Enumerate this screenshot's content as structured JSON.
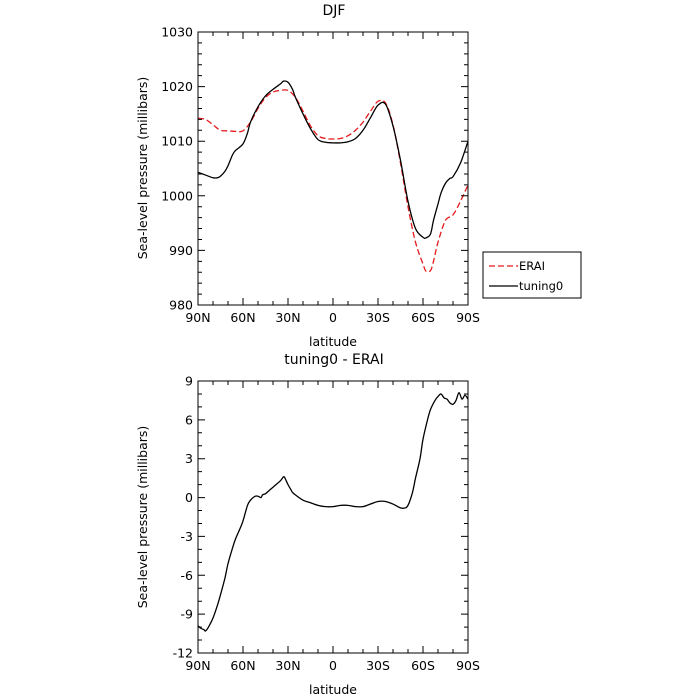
{
  "chart_data": [
    {
      "type": "line",
      "title": "DJF",
      "xlabel": "latitude",
      "ylabel": "Sea-level pressure (millibars)",
      "xlim": [
        90,
        -90
      ],
      "ylim": [
        980,
        1030
      ],
      "xticks": [
        {
          "value": 90,
          "label": "90N"
        },
        {
          "value": 60,
          "label": "60N"
        },
        {
          "value": 30,
          "label": "30N"
        },
        {
          "value": 0,
          "label": "0"
        },
        {
          "value": -30,
          "label": "30S"
        },
        {
          "value": -60,
          "label": "60S"
        },
        {
          "value": -90,
          "label": "90S"
        }
      ],
      "yticks": [
        {
          "value": 1030,
          "label": "1030"
        },
        {
          "value": 1020,
          "label": "1020"
        },
        {
          "value": 1010,
          "label": "1010"
        },
        {
          "value": 1000,
          "label": "1000"
        },
        {
          "value": 990,
          "label": "990"
        },
        {
          "value": 980,
          "label": "980"
        }
      ],
      "legend": "outside-right",
      "grid": false,
      "series": [
        {
          "name": "ERAI",
          "color": "#e41a1c",
          "dash": "dashed",
          "x": [
            90,
            85,
            80,
            75,
            70,
            65,
            60,
            55,
            50,
            45,
            40,
            35,
            30,
            25,
            20,
            15,
            10,
            5,
            0,
            -5,
            -10,
            -15,
            -20,
            -25,
            -30,
            -35,
            -40,
            -45,
            -50,
            -55,
            -60,
            -62,
            -65,
            -67,
            -70,
            -75,
            -80,
            -85,
            -90
          ],
          "y": [
            1014.2,
            1014.0,
            1013.0,
            1012.0,
            1011.9,
            1011.8,
            1011.9,
            1013.5,
            1016.0,
            1018.0,
            1019.0,
            1019.3,
            1019.3,
            1018.0,
            1015.5,
            1012.8,
            1011.0,
            1010.5,
            1010.4,
            1010.5,
            1011.0,
            1012.0,
            1013.5,
            1015.5,
            1017.3,
            1017.0,
            1013.0,
            1006.0,
            998.0,
            991.5,
            987.5,
            986.2,
            986.3,
            988.0,
            991.5,
            995.5,
            996.5,
            999.0,
            1002.0
          ]
        },
        {
          "name": "tuning0",
          "color": "#000000",
          "dash": "solid",
          "x": [
            90,
            85,
            80,
            77,
            75,
            72,
            70,
            67,
            65,
            60,
            57,
            55,
            50,
            45,
            40,
            35,
            33,
            30,
            27,
            25,
            20,
            15,
            10,
            5,
            0,
            -5,
            -10,
            -15,
            -20,
            -25,
            -30,
            -35,
            -40,
            -45,
            -50,
            -55,
            -60,
            -62,
            -65,
            -67,
            -70,
            -72,
            -75,
            -78,
            -80,
            -85,
            -90
          ],
          "y": [
            1004.3,
            1003.8,
            1003.3,
            1003.3,
            1003.6,
            1004.5,
            1005.5,
            1007.5,
            1008.3,
            1009.5,
            1011.5,
            1013.5,
            1016.3,
            1018.3,
            1019.5,
            1020.5,
            1021.0,
            1020.8,
            1019.5,
            1018.0,
            1015.0,
            1012.3,
            1010.3,
            1009.8,
            1009.7,
            1009.7,
            1009.9,
            1010.5,
            1012.0,
            1014.3,
            1016.6,
            1016.8,
            1012.8,
            1006.5,
            999.0,
            994.0,
            992.4,
            992.3,
            993.0,
            995.5,
            998.5,
            1000.5,
            1002.3,
            1003.2,
            1003.5,
            1006.0,
            1010.0
          ]
        }
      ]
    },
    {
      "type": "line",
      "title": "tuning0 - ERAI",
      "xlabel": "latitude",
      "ylabel": "Sea-level pressure (millibars)",
      "xlim": [
        90,
        -90
      ],
      "ylim": [
        -12,
        9
      ],
      "xticks": [
        {
          "value": 90,
          "label": "90N"
        },
        {
          "value": 60,
          "label": "60N"
        },
        {
          "value": 30,
          "label": "30N"
        },
        {
          "value": 0,
          "label": "0"
        },
        {
          "value": -30,
          "label": "30S"
        },
        {
          "value": -60,
          "label": "60S"
        },
        {
          "value": -90,
          "label": "90S"
        }
      ],
      "yticks": [
        {
          "value": 9,
          "label": "9"
        },
        {
          "value": 6,
          "label": "6"
        },
        {
          "value": 3,
          "label": "3"
        },
        {
          "value": 0,
          "label": "0"
        },
        {
          "value": -3,
          "label": "-3"
        },
        {
          "value": -6,
          "label": "-6"
        },
        {
          "value": -9,
          "label": "-9"
        },
        {
          "value": -12,
          "label": "-12"
        }
      ],
      "grid": false,
      "series": [
        {
          "color": "#000000",
          "dash": "solid",
          "x": [
            90,
            88,
            86,
            85,
            83,
            80,
            77,
            75,
            72,
            70,
            67,
            65,
            62,
            60,
            57,
            55,
            52,
            50,
            48,
            47,
            45,
            43,
            42,
            40,
            38,
            35,
            33,
            32,
            30,
            28,
            27,
            25,
            20,
            15,
            10,
            5,
            0,
            -5,
            -10,
            -15,
            -20,
            -25,
            -30,
            -35,
            -40,
            -45,
            -48,
            -50,
            -53,
            -55,
            -58,
            -60,
            -63,
            -65,
            -68,
            -70,
            -72,
            -74,
            -76,
            -78,
            -80,
            -82,
            -84,
            -86,
            -88,
            -90
          ],
          "y": [
            -9.9,
            -10.1,
            -10.2,
            -10.3,
            -10.0,
            -9.3,
            -8.3,
            -7.5,
            -6.2,
            -5.1,
            -3.9,
            -3.2,
            -2.4,
            -1.8,
            -0.6,
            -0.2,
            0.1,
            0.1,
            0.0,
            0.2,
            0.3,
            0.5,
            0.6,
            0.8,
            1.0,
            1.3,
            1.6,
            1.5,
            1.0,
            0.6,
            0.4,
            0.2,
            -0.2,
            -0.4,
            -0.6,
            -0.7,
            -0.7,
            -0.6,
            -0.6,
            -0.7,
            -0.7,
            -0.5,
            -0.3,
            -0.3,
            -0.5,
            -0.8,
            -0.8,
            -0.6,
            0.4,
            1.5,
            3.0,
            4.5,
            6.0,
            6.8,
            7.5,
            7.8,
            8.0,
            7.7,
            7.6,
            7.3,
            7.2,
            7.5,
            8.1,
            7.6,
            7.9,
            7.6
          ]
        }
      ]
    }
  ]
}
